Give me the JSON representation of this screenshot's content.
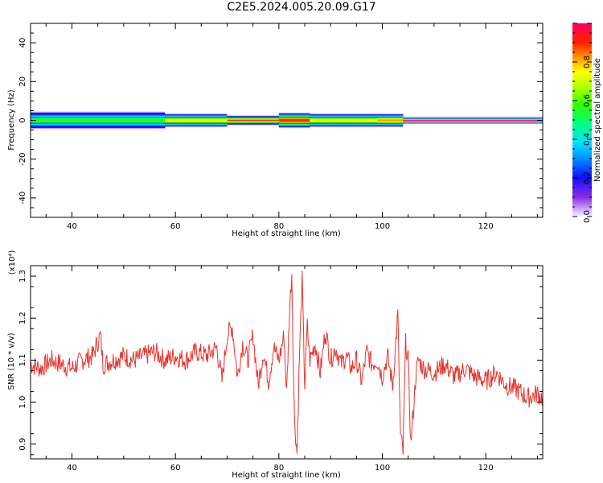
{
  "title": "C2E5.2024.005.20.09.G17",
  "chart_data": [
    {
      "type": "heatmap",
      "xlabel": "Height of straight line (km)",
      "ylabel": "Frequency (Hz)",
      "xlim": [
        32,
        131
      ],
      "ylim": [
        -50,
        50
      ],
      "xticks": [
        40,
        60,
        80,
        100,
        120
      ],
      "yticks": [
        40,
        20,
        0,
        -20,
        -40
      ],
      "colorbar": {
        "label": "Normalized spectral amplitude",
        "range": [
          0,
          1
        ],
        "ticks": [
          0.0,
          0.2,
          0.4,
          0.6,
          0.8
        ]
      },
      "band_segments": [
        {
          "x0": 32,
          "x1": 58,
          "halfwidth": 4.5,
          "peak": 0.55
        },
        {
          "x0": 58,
          "x1": 70,
          "halfwidth": 3.5,
          "peak": 0.7
        },
        {
          "x0": 70,
          "x1": 80,
          "halfwidth": 2.5,
          "peak": 0.85
        },
        {
          "x0": 80,
          "x1": 86,
          "halfwidth": 4.0,
          "peak": 0.9
        },
        {
          "x0": 86,
          "x1": 99,
          "halfwidth": 3.5,
          "peak": 0.7
        },
        {
          "x0": 99,
          "x1": 104,
          "halfwidth": 3.5,
          "peak": 0.8
        },
        {
          "x0": 104,
          "x1": 131,
          "halfwidth": 1.2,
          "peak": 0.92
        }
      ]
    },
    {
      "type": "line",
      "xlabel": "Height of straight line (km)",
      "ylabel": "SNR (10 * v/v)",
      "yscale_label": "(x10⁴)",
      "xlim": [
        32,
        131
      ],
      "ylim": [
        0.865,
        1.325
      ],
      "xticks": [
        40,
        60,
        80,
        100,
        120
      ],
      "yticks": [
        0.9,
        1.0,
        1.1,
        1.2,
        1.3
      ],
      "series": [
        {
          "color": "#e8342e",
          "x": [
            32,
            34,
            36,
            38,
            40,
            42,
            44,
            45.5,
            46,
            48,
            50,
            52,
            54,
            56,
            58,
            60,
            62,
            64,
            66,
            68,
            69,
            70,
            71,
            72,
            73,
            74,
            75,
            76,
            77,
            78,
            79,
            80,
            81,
            81.5,
            82,
            82.5,
            83,
            83.5,
            84,
            84.5,
            85,
            85.5,
            86,
            87,
            88,
            89,
            90,
            91,
            92,
            93,
            94,
            95,
            96,
            97,
            98,
            99,
            100,
            101,
            102,
            103,
            103.5,
            104,
            104.5,
            105,
            105.5,
            106,
            106.5,
            107,
            108,
            110,
            112,
            114,
            116,
            118,
            120,
            122,
            124,
            126,
            128,
            130,
            131
          ],
          "y": [
            1.09,
            1.08,
            1.1,
            1.09,
            1.08,
            1.1,
            1.11,
            1.16,
            1.09,
            1.1,
            1.11,
            1.1,
            1.11,
            1.12,
            1.1,
            1.11,
            1.1,
            1.12,
            1.11,
            1.13,
            1.05,
            1.16,
            1.18,
            1.06,
            1.14,
            1.1,
            1.16,
            1.04,
            1.12,
            1.05,
            1.13,
            1.1,
            1.16,
            1.02,
            1.2,
            1.31,
            0.96,
            0.88,
            1.12,
            1.29,
            1.04,
            1.18,
            1.1,
            1.14,
            1.07,
            1.17,
            1.1,
            1.13,
            1.09,
            1.11,
            1.08,
            1.1,
            1.05,
            1.12,
            1.09,
            1.1,
            1.06,
            1.11,
            1.04,
            1.21,
            0.92,
            0.88,
            1.14,
            1.1,
            0.9,
            0.98,
            1.07,
            1.1,
            1.08,
            1.07,
            1.09,
            1.06,
            1.08,
            1.06,
            1.05,
            1.07,
            1.04,
            1.03,
            1.01,
            1.02,
            1.01
          ]
        }
      ]
    }
  ]
}
